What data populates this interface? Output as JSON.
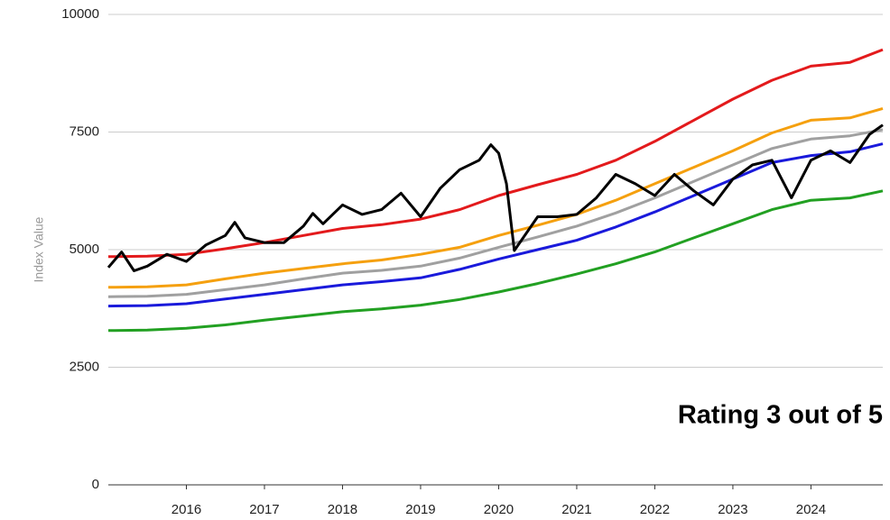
{
  "chart_data": {
    "type": "line",
    "y_label": "Index Value",
    "annotation": "Rating 3 out of 5",
    "x": [
      2015,
      2015.5,
      2016,
      2016.5,
      2017,
      2017.5,
      2018,
      2018.5,
      2019,
      2019.5,
      2020,
      2020.5,
      2021,
      2021.5,
      2022,
      2022.5,
      2023,
      2023.5,
      2024,
      2024.5,
      2024.92
    ],
    "series": [
      {
        "color": "#e31a1c",
        "values": [
          4850,
          4860,
          4900,
          5020,
          5150,
          5300,
          5450,
          5530,
          5650,
          5850,
          6150,
          6380,
          6600,
          6900,
          7300,
          7750,
          8200,
          8600,
          8900,
          8980,
          9250
        ]
      },
      {
        "color": "#f5a00f",
        "values": [
          4200,
          4210,
          4250,
          4380,
          4500,
          4600,
          4700,
          4780,
          4900,
          5050,
          5300,
          5520,
          5750,
          6050,
          6400,
          6750,
          7100,
          7480,
          7750,
          7800,
          8000
        ]
      },
      {
        "color": "#a0a0a0",
        "values": [
          4000,
          4010,
          4050,
          4150,
          4250,
          4380,
          4500,
          4560,
          4650,
          4820,
          5050,
          5270,
          5500,
          5780,
          6100,
          6450,
          6800,
          7150,
          7350,
          7420,
          7550
        ]
      },
      {
        "color": "#1a1adb",
        "values": [
          3800,
          3810,
          3850,
          3950,
          4050,
          4150,
          4250,
          4320,
          4400,
          4580,
          4800,
          5000,
          5200,
          5480,
          5800,
          6150,
          6500,
          6850,
          7000,
          7080,
          7250
        ]
      },
      {
        "color": "#22a022",
        "values": [
          3280,
          3290,
          3330,
          3400,
          3500,
          3590,
          3680,
          3740,
          3820,
          3940,
          4100,
          4280,
          4480,
          4700,
          4950,
          5250,
          5550,
          5850,
          6050,
          6100,
          6250
        ]
      },
      {
        "color": "#000000",
        "x": [
          2015,
          2015.17,
          2015.33,
          2015.5,
          2015.75,
          2016,
          2016.25,
          2016.5,
          2016.62,
          2016.75,
          2017,
          2017.25,
          2017.5,
          2017.62,
          2017.75,
          2018,
          2018.25,
          2018.5,
          2018.75,
          2019,
          2019.25,
          2019.5,
          2019.75,
          2019.9,
          2020,
          2020.1,
          2020.2,
          2020.5,
          2020.75,
          2021,
          2021.25,
          2021.5,
          2021.75,
          2022,
          2022.25,
          2022.5,
          2022.75,
          2023,
          2023.25,
          2023.5,
          2023.75,
          2024,
          2024.25,
          2024.5,
          2024.75,
          2024.92
        ],
        "values": [
          4620,
          4950,
          4550,
          4650,
          4900,
          4750,
          5100,
          5300,
          5580,
          5250,
          5150,
          5150,
          5500,
          5770,
          5550,
          5950,
          5750,
          5850,
          6200,
          5700,
          6300,
          6700,
          6900,
          7230,
          7050,
          6400,
          4980,
          5700,
          5700,
          5750,
          6100,
          6600,
          6400,
          6150,
          6600,
          6250,
          5950,
          6500,
          6800,
          6900,
          6100,
          6900,
          7100,
          6850,
          7450,
          7650
        ]
      }
    ],
    "xlim": [
      2015,
      2024.92
    ],
    "xticks": [
      2016,
      2017,
      2018,
      2019,
      2020,
      2021,
      2022,
      2023,
      2024
    ],
    "ylim": [
      0,
      10000
    ],
    "yticks": [
      0,
      2500,
      5000,
      7500,
      10000
    ],
    "grid": true
  }
}
